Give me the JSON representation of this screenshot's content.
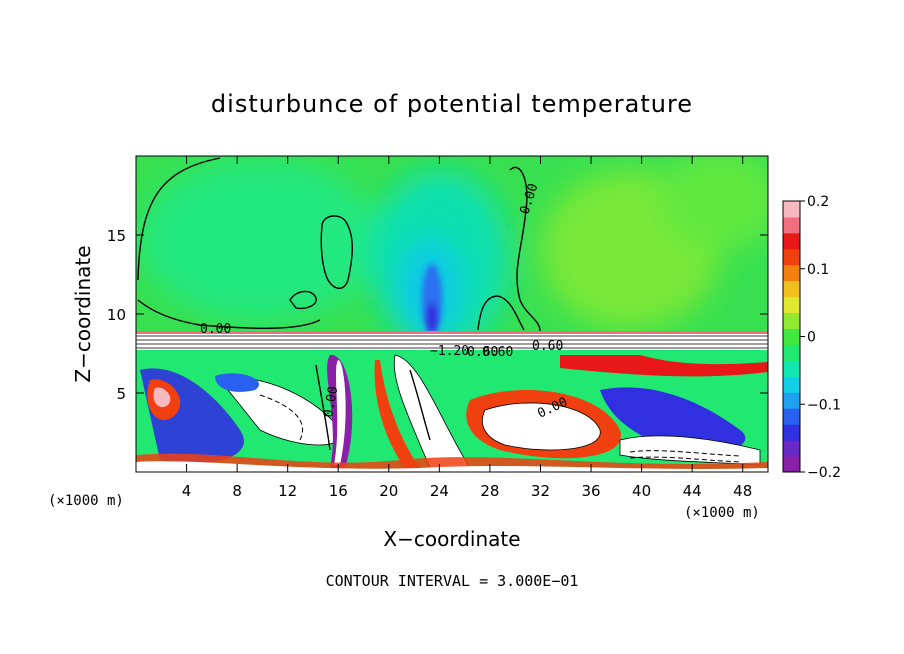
{
  "chart_data": {
    "type": "heatmap",
    "title": "disturbunce of potential temperature",
    "xlabel": "X−coordinate",
    "ylabel": "Z−coordinate",
    "x_unit_left": "(×1000 m)",
    "x_unit_right": "(×1000 m)",
    "xlim": [
      0,
      50
    ],
    "ylim": [
      0,
      20
    ],
    "x_ticks": [
      "4",
      "8",
      "12",
      "16",
      "20",
      "24",
      "28",
      "32",
      "36",
      "40",
      "44",
      "48"
    ],
    "x_tick_values": [
      4,
      8,
      12,
      16,
      20,
      24,
      28,
      32,
      36,
      40,
      44,
      48
    ],
    "y_ticks": [
      "5",
      "10",
      "15"
    ],
    "y_tick_values": [
      5,
      10,
      15
    ],
    "colorbar": {
      "range": [
        -0.2,
        0.2
      ],
      "tick_labels": [
        "0.2",
        "0.1",
        "0",
        "−0.1",
        "−0.2"
      ],
      "tick_values": [
        0.2,
        0.1,
        0,
        -0.1,
        -0.2
      ],
      "colors": [
        "#8a1fa8",
        "#6a28c8",
        "#3030e0",
        "#2a60f0",
        "#20a0f0",
        "#10d0e8",
        "#10e8b0",
        "#20e870",
        "#40e840",
        "#90e830",
        "#e0e830",
        "#f0c020",
        "#f08010",
        "#f04010",
        "#e81818",
        "#f07080",
        "#f8b8c0"
      ]
    },
    "contour_labels": [
      "0.00",
      "0.00",
      "0.00",
      "0.00",
      "−1.20",
      "0.60",
      "0.60",
      "0.60"
    ],
    "contour_interval_text": "CONTOUR INTERVAL = 3.000E−01"
  }
}
